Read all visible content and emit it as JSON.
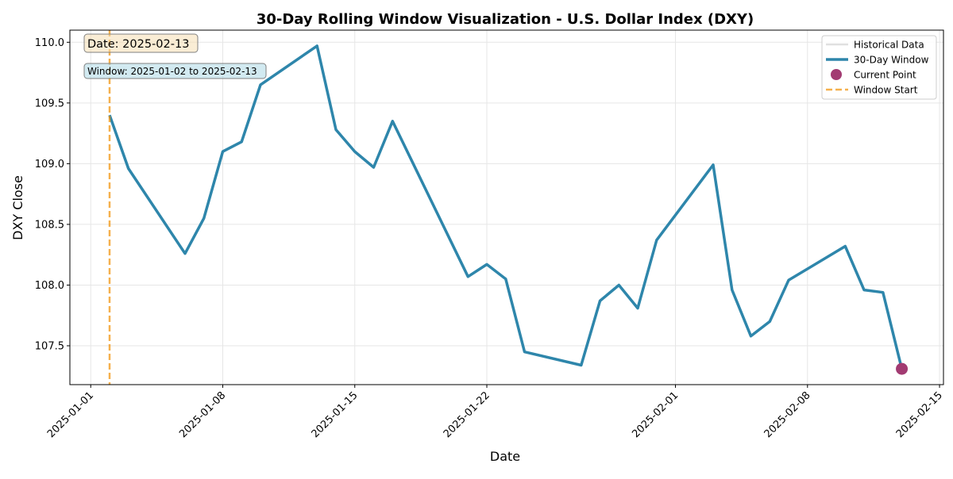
{
  "chart_data": {
    "type": "line",
    "title": "30-Day Rolling Window Visualization - U.S. Dollar Index (DXY)",
    "xlabel": "Date",
    "ylabel": "DXY Close",
    "xlim": [
      "2024-12-30T21:30",
      "2025-02-15T05:00"
    ],
    "ylim": [
      107.18,
      110.1
    ],
    "x_ticks": [
      "2025-01-01",
      "2025-01-08",
      "2025-01-15",
      "2025-01-22",
      "2025-02-01",
      "2025-02-08",
      "2025-02-15"
    ],
    "y_ticks": [
      107.5,
      108.0,
      108.5,
      109.0,
      109.5,
      110.0
    ],
    "y_tick_labels": [
      "107.5",
      "108.0",
      "108.5",
      "109.0",
      "109.5",
      "110.0"
    ],
    "grid": true,
    "legend_placement": "top-right",
    "legend": [
      {
        "label": "Historical Data",
        "style": "line",
        "color": "#e0e0e0"
      },
      {
        "label": "30-Day Window",
        "style": "line",
        "color": "#2e86ab"
      },
      {
        "label": "Current Point",
        "style": "marker",
        "color": "#a23b72"
      },
      {
        "label": "Window Start",
        "style": "dashed",
        "color": "#f18f01"
      }
    ],
    "series": [
      {
        "name": "30-Day Window",
        "color": "#2e86ab",
        "x": [
          "2025-01-02",
          "2025-01-03",
          "2025-01-06",
          "2025-01-07",
          "2025-01-08",
          "2025-01-09",
          "2025-01-10",
          "2025-01-13",
          "2025-01-14",
          "2025-01-15",
          "2025-01-16",
          "2025-01-17",
          "2025-01-21",
          "2025-01-22",
          "2025-01-23",
          "2025-01-24",
          "2025-01-27",
          "2025-01-28",
          "2025-01-29",
          "2025-01-30",
          "2025-01-31",
          "2025-02-03",
          "2025-02-04",
          "2025-02-05",
          "2025-02-06",
          "2025-02-07",
          "2025-02-10",
          "2025-02-11",
          "2025-02-12",
          "2025-02-13"
        ],
        "y": [
          109.4,
          108.96,
          108.26,
          108.55,
          109.1,
          109.18,
          109.65,
          109.97,
          109.28,
          109.1,
          108.97,
          109.35,
          108.07,
          108.17,
          108.05,
          107.45,
          107.34,
          107.87,
          108.0,
          107.81,
          108.37,
          108.99,
          107.96,
          107.58,
          107.7,
          108.04,
          108.32,
          107.96,
          107.94,
          107.31
        ]
      }
    ],
    "current_point": {
      "x": "2025-02-13",
      "y": 107.31,
      "color": "#a23b72"
    },
    "window_start": {
      "x": "2025-01-02",
      "color": "#f18f01"
    },
    "annotations": {
      "date_label": "Date: 2025-02-13",
      "window_label": "Window: 2025-01-02 to 2025-02-13"
    }
  }
}
